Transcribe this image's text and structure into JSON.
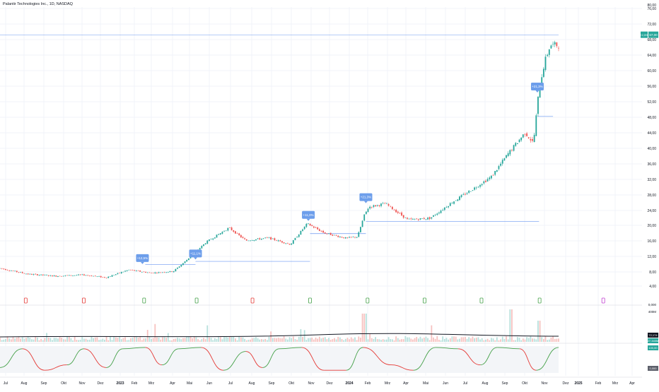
{
  "header": {
    "title": "Palantir Technologies Inc., 1D, NASDAQ"
  },
  "colors": {
    "up": "#26a69a",
    "down": "#ef5350",
    "marker": "#6d9eeb",
    "grid": "#f0f3fa",
    "bull_line": "#43a047",
    "bear_line": "#e53935",
    "ma": "#131722"
  },
  "chart_data": {
    "type": "candlestick",
    "ylim": [
      0,
      75
    ],
    "y_ticks": [
      "4,00",
      "8,00",
      "12,00",
      "16,00",
      "20,00",
      "24,00",
      "28,00",
      "32,00",
      "36,00",
      "40,00",
      "44,00",
      "48,00",
      "52,00",
      "56,00",
      "60,00",
      "64,00",
      "68,00",
      "72,00",
      "76,00"
    ],
    "top_tick": "80,00",
    "x_ticks": [
      "Jul",
      "Aug",
      "Sep",
      "Okt",
      "Nov",
      "Dez",
      "2023",
      "Feb",
      "Mrz",
      "Apr",
      "Mai",
      "Jun",
      "Jul",
      "Aug",
      "Sep",
      "Okt",
      "Nov",
      "Dez",
      "2024",
      "Feb",
      "Mrz",
      "Apr",
      "Mai",
      "Jun",
      "Jul",
      "Aug",
      "Sep",
      "Okt",
      "Nov",
      "Dez",
      "2025",
      "Feb",
      "Mrz",
      "Apr"
    ],
    "price_path": [
      {
        "t": 0,
        "v": 8.6
      },
      {
        "t": 0.05,
        "v": 7.1
      },
      {
        "t": 0.1,
        "v": 6.6
      },
      {
        "t": 0.15,
        "v": 6.9
      },
      {
        "t": 0.19,
        "v": 6.2
      },
      {
        "t": 0.21,
        "v": 7.2
      },
      {
        "t": 0.23,
        "v": 8.2
      },
      {
        "t": 0.27,
        "v": 7.4
      },
      {
        "t": 0.31,
        "v": 7.8
      },
      {
        "t": 0.33,
        "v": 10.2
      },
      {
        "t": 0.37,
        "v": 15.5
      },
      {
        "t": 0.41,
        "v": 19.1
      },
      {
        "t": 0.44,
        "v": 15.8
      },
      {
        "t": 0.48,
        "v": 16.5
      },
      {
        "t": 0.52,
        "v": 14.8
      },
      {
        "t": 0.55,
        "v": 20.2
      },
      {
        "t": 0.58,
        "v": 17.8
      },
      {
        "t": 0.62,
        "v": 16.4
      },
      {
        "t": 0.64,
        "v": 16.8
      },
      {
        "t": 0.652,
        "v": 22.3
      },
      {
        "t": 0.66,
        "v": 24.5
      },
      {
        "t": 0.69,
        "v": 25.4
      },
      {
        "t": 0.73,
        "v": 21.2
      },
      {
        "t": 0.77,
        "v": 21.6
      },
      {
        "t": 0.81,
        "v": 25.8
      },
      {
        "t": 0.85,
        "v": 29.5
      },
      {
        "t": 0.88,
        "v": 32.4
      },
      {
        "t": 0.91,
        "v": 38.4
      },
      {
        "t": 0.94,
        "v": 43.8
      },
      {
        "t": 0.955,
        "v": 41.1
      },
      {
        "t": 0.965,
        "v": 55.2
      },
      {
        "t": 0.975,
        "v": 62.1
      },
      {
        "t": 0.985,
        "v": 66.5
      }
    ],
    "last_price": "67,00",
    "last_change": "+2,5%",
    "gap_markers": [
      {
        "label": "+12,5%",
        "t": 0.255,
        "v": 9.7
      },
      {
        "label": "+11,1%",
        "t": 0.35,
        "v": 10.9
      },
      {
        "label": "+11,0%",
        "t": 0.552,
        "v": 20.9
      },
      {
        "label": "+21,3%",
        "t": 0.655,
        "v": 25.5
      },
      {
        "label": "+21,3%",
        "t": 0.962,
        "v": 54.2
      }
    ],
    "support_lines": [
      {
        "v": 9.6,
        "t1": 0.26,
        "t2": 0.35
      },
      {
        "v": 10.4,
        "t1": 0.35,
        "t2": 0.555
      },
      {
        "v": 17.6,
        "t1": 0.555,
        "t2": 0.655
      },
      {
        "v": 20.8,
        "t1": 0.655,
        "t2": 0.965
      },
      {
        "v": 48.0,
        "t1": 0.962,
        "t2": 0.99
      },
      {
        "v": 69.1,
        "t1": 0.0,
        "t2": 1.0
      }
    ],
    "signals": [
      {
        "t": 0.046,
        "type": "bear"
      },
      {
        "t": 0.15,
        "type": "bear"
      },
      {
        "t": 0.258,
        "type": "bull"
      },
      {
        "t": 0.352,
        "type": "bull"
      },
      {
        "t": 0.452,
        "type": "bear"
      },
      {
        "t": 0.555,
        "type": "bull"
      },
      {
        "t": 0.658,
        "type": "bull"
      },
      {
        "t": 0.76,
        "type": "bull"
      },
      {
        "t": 0.862,
        "type": "bull"
      },
      {
        "t": 0.966,
        "type": "bull"
      },
      {
        "t": 1.08,
        "type": "neutral"
      }
    ],
    "volume_ticks": [
      "400M",
      "0,000"
    ],
    "volume_labels": [
      "27,340M",
      "72,174"
    ],
    "oscillator_labels": [
      "100,00",
      "0,000"
    ],
    "oscillator_regimes": [
      {
        "t": 0.0,
        "v": 0.2
      },
      {
        "t": 0.04,
        "v": 0.9
      },
      {
        "t": 0.08,
        "v": 0.1
      },
      {
        "t": 0.12,
        "v": 0.3
      },
      {
        "t": 0.15,
        "v": 0.9
      },
      {
        "t": 0.19,
        "v": 0.2
      },
      {
        "t": 0.22,
        "v": 0.9
      },
      {
        "t": 0.26,
        "v": 0.95
      },
      {
        "t": 0.29,
        "v": 0.3
      },
      {
        "t": 0.32,
        "v": 0.9
      },
      {
        "t": 0.36,
        "v": 0.95
      },
      {
        "t": 0.4,
        "v": 0.1
      },
      {
        "t": 0.44,
        "v": 0.8
      },
      {
        "t": 0.47,
        "v": 0.2
      },
      {
        "t": 0.5,
        "v": 0.9
      },
      {
        "t": 0.54,
        "v": 0.95
      },
      {
        "t": 0.58,
        "v": 0.1
      },
      {
        "t": 0.62,
        "v": 0.1
      },
      {
        "t": 0.65,
        "v": 0.95
      },
      {
        "t": 0.7,
        "v": 0.3
      },
      {
        "t": 0.74,
        "v": 0.1
      },
      {
        "t": 0.78,
        "v": 0.95
      },
      {
        "t": 0.82,
        "v": 0.9
      },
      {
        "t": 0.86,
        "v": 0.3
      },
      {
        "t": 0.89,
        "v": 0.95
      },
      {
        "t": 0.93,
        "v": 0.9
      },
      {
        "t": 0.96,
        "v": 0.1
      },
      {
        "t": 1.0,
        "v": 0.95
      }
    ]
  }
}
